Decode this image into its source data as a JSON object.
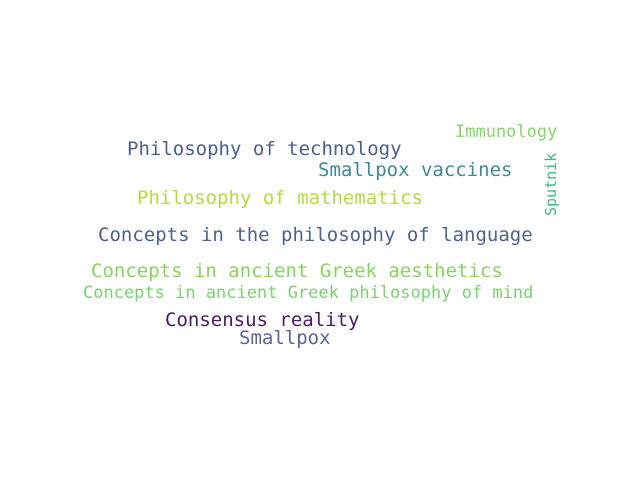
{
  "words": [
    {
      "text": "Philosophy of technology",
      "color": "#4a6190"
    },
    {
      "text": "Immunology",
      "color": "#86d66a"
    },
    {
      "text": "Smallpox vaccines",
      "color": "#3a8a9a"
    },
    {
      "text": "Sputnik",
      "color": "#3eb58f"
    },
    {
      "text": "Philosophy of mathematics",
      "color": "#b5dd3c"
    },
    {
      "text": "Concepts in the philosophy of language",
      "color": "#4c6390"
    },
    {
      "text": "Concepts in ancient Greek aesthetics",
      "color": "#8ad45e"
    },
    {
      "text": "Concepts in ancient Greek philosophy of mind",
      "color": "#7ad270"
    },
    {
      "text": "Consensus reality",
      "color": "#4b1a5e"
    },
    {
      "text": "Smallpox",
      "color": "#5a62a0"
    }
  ]
}
